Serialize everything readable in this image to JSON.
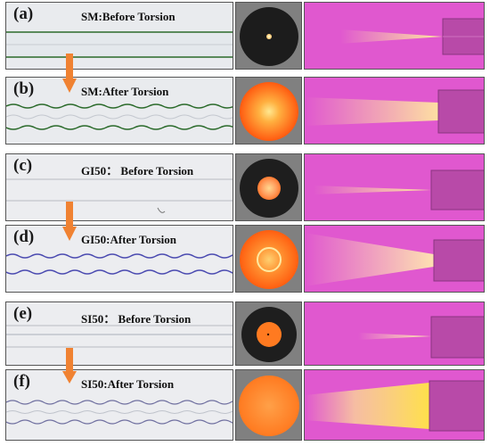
{
  "panels": [
    {
      "letter": "(a)",
      "title": "SM:Before Torsion",
      "fiber": "SM",
      "state": "before"
    },
    {
      "letter": "(b)",
      "title": "SM:After Torsion",
      "fiber": "SM",
      "state": "after"
    },
    {
      "letter": "(c)",
      "title": "GI50： Before Torsion",
      "fiber": "GI50",
      "state": "before"
    },
    {
      "letter": "(d)",
      "title": "GI50:After Torsion",
      "fiber": "GI50",
      "state": "after"
    },
    {
      "letter": "(e)",
      "title": "SI50： Before Torsion",
      "fiber": "SI50",
      "state": "before"
    },
    {
      "letter": "(f)",
      "title": "SI50:After Torsion",
      "fiber": "SI50",
      "state": "after"
    }
  ],
  "colors": {
    "arrow": "#f08232",
    "beam_background": "#e060d0",
    "laser_orange": "#ff7a1a",
    "laser_yellow": "#ffe066",
    "endface_background": "#7a7a7a"
  }
}
